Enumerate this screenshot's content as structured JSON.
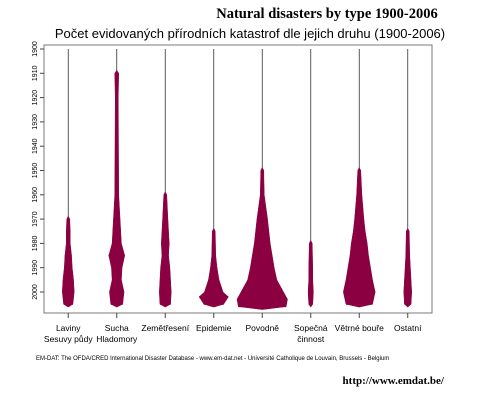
{
  "page": {
    "header_title": "Natural disasters by type 1900-2006",
    "source_note": "EM-DAT: The OFDA/CRED International Disaster Database - www.em-dat.net - Université Catholique  de Louvain, Brussels - Belgium",
    "footer_url": "http://www.emdat.be/"
  },
  "chart_data": {
    "type": "violin",
    "title": "Počet evidovaných přírodních katastrof dle jejich druhu (1900-2006)",
    "xlabel": "",
    "ylabel": "",
    "y_orientation": "reversed",
    "ylim": [
      1900,
      2007
    ],
    "yticks": [
      1900,
      1910,
      1920,
      1930,
      1940,
      1950,
      1960,
      1970,
      1980,
      1990,
      2000
    ],
    "grid": false,
    "color": "#8b0040",
    "categories": [
      {
        "label_line1": "Laviny",
        "label_line2": "Sesuvy půdy",
        "years": [
          1970,
          1975,
          1980,
          1985,
          1990,
          1995,
          2000,
          2005
        ],
        "counts": [
          2,
          3,
          3,
          5,
          6,
          8,
          9,
          7
        ]
      },
      {
        "label_line1": "Sucha",
        "label_line2": "Hladomory",
        "years": [
          1910,
          1920,
          1960,
          1970,
          1980,
          1985,
          1990,
          1995,
          2000,
          2005
        ],
        "counts": [
          3,
          2,
          3,
          5,
          7,
          12,
          8,
          7,
          11,
          9
        ]
      },
      {
        "label_line1": "Zemětřesení",
        "label_line2": "",
        "years": [
          1960,
          1970,
          1980,
          1985,
          1990,
          1995,
          2000,
          2005
        ],
        "counts": [
          2,
          4,
          6,
          5,
          7,
          8,
          9,
          8
        ]
      },
      {
        "label_line1": "Epidemie",
        "label_line2": "",
        "years": [
          1975,
          1985,
          1990,
          1995,
          2000,
          2002,
          2005
        ],
        "counts": [
          2,
          3,
          5,
          8,
          14,
          22,
          15
        ]
      },
      {
        "label_line1": "Povodně",
        "label_line2": "",
        "years": [
          1950,
          1960,
          1970,
          1975,
          1980,
          1985,
          1990,
          1995,
          2000,
          2003,
          2006
        ],
        "counts": [
          2,
          3,
          8,
          10,
          12,
          15,
          18,
          22,
          32,
          38,
          36
        ]
      },
      {
        "label_line1": "Sopečná",
        "label_line2": "činnost",
        "years": [
          1980,
          1990,
          1995,
          2000,
          2005
        ],
        "counts": [
          2,
          3,
          3,
          4,
          3
        ]
      },
      {
        "label_line1": "Větrné bouře",
        "label_line2": "",
        "years": [
          1950,
          1960,
          1970,
          1975,
          1980,
          1985,
          1990,
          1995,
          2000,
          2005
        ],
        "counts": [
          2,
          4,
          7,
          9,
          12,
          14,
          17,
          20,
          24,
          20
        ]
      },
      {
        "label_line1": "Ostatní",
        "label_line2": "",
        "years": [
          1975,
          1985,
          1990,
          1995,
          2000,
          2005
        ],
        "counts": [
          2,
          3,
          4,
          5,
          6,
          5
        ]
      }
    ]
  }
}
